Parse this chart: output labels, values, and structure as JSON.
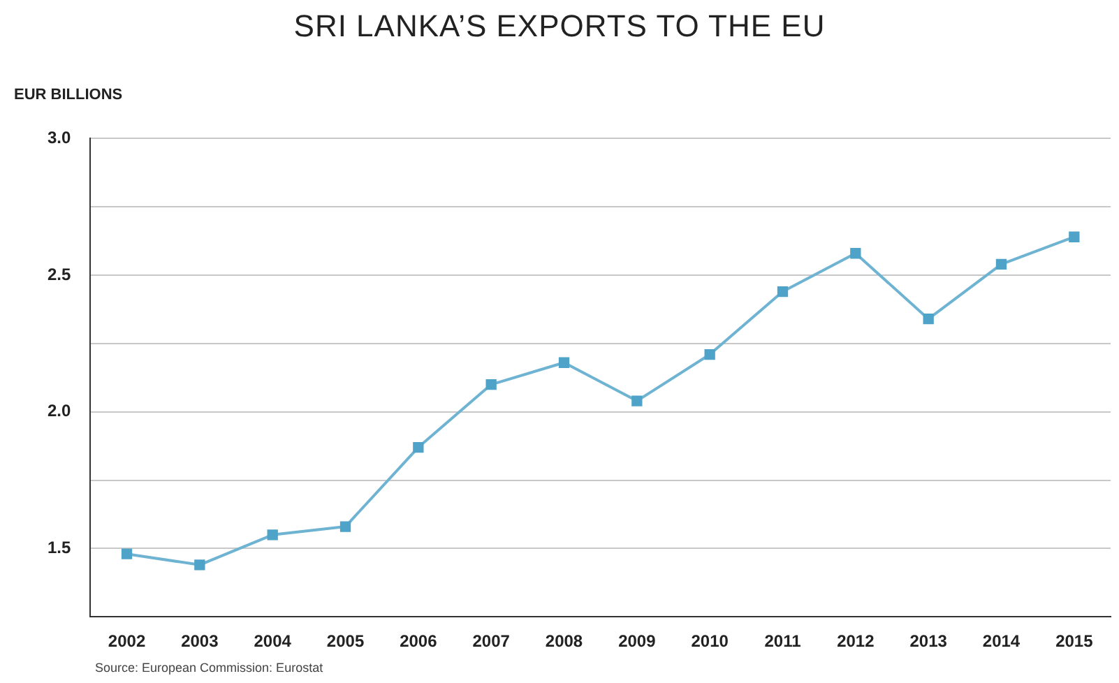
{
  "chart_data": {
    "type": "line",
    "title": "SRI LANKA’S EXPORTS TO THE EU",
    "ylabel": "EUR BILLIONS",
    "categories": [
      "2002",
      "2003",
      "2004",
      "2005",
      "2006",
      "2007",
      "2008",
      "2009",
      "2010",
      "2011",
      "2012",
      "2013",
      "2014",
      "2015"
    ],
    "series": [
      {
        "color": "#6fb3d3",
        "values": [
          1.48,
          1.44,
          1.55,
          1.58,
          1.87,
          2.1,
          2.18,
          2.04,
          2.21,
          2.44,
          2.58,
          2.34,
          2.54,
          2.64
        ]
      }
    ],
    "ylim": [
      1.25,
      3.0
    ],
    "yticks": [
      {
        "value": 1.25,
        "label": null
      },
      1.5,
      {
        "value": 1.75,
        "label": null
      },
      {
        "value": 2,
        "label": "2.0"
      },
      {
        "value": 2.25,
        "label": null
      },
      2.5,
      {
        "value": 2.75,
        "label": null
      },
      {
        "value": 3,
        "label": "3.0"
      }
    ],
    "grid": "y",
    "marker": "square",
    "line_style": "solid",
    "legend": false,
    "annotations": [
      "Source: European Commission: Eurostat"
    ]
  }
}
